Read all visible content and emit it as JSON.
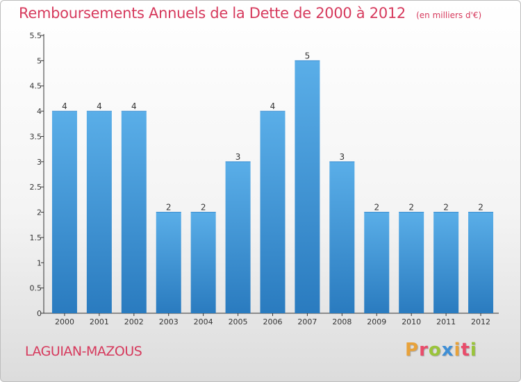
{
  "header": {
    "title": "Remboursements Annuels de la Dette de 2000 à 2012",
    "unit": "(en milliers d'€)"
  },
  "footer": {
    "commune": "LAGUIAN-MAZOUS",
    "brand_letters": [
      "P",
      "r",
      "o",
      "x",
      "i",
      "t",
      "i"
    ],
    "brand_colors": [
      "#e8a23a",
      "#e94c6a",
      "#9ac43a",
      "#3f8fd6",
      "#e8a23a",
      "#e94c6a",
      "#9ac43a"
    ]
  },
  "chart_data": {
    "type": "bar",
    "categories": [
      "2000",
      "2001",
      "2002",
      "2003",
      "2004",
      "2005",
      "2006",
      "2007",
      "2008",
      "2009",
      "2010",
      "2011",
      "2012"
    ],
    "values": [
      4,
      4,
      4,
      2,
      2,
      3,
      4,
      5,
      3,
      2,
      2,
      2,
      2
    ],
    "data_labels": [
      "4",
      "4",
      "4",
      "2",
      "2",
      "3",
      "4",
      "5",
      "3",
      "2",
      "2",
      "2",
      "2"
    ],
    "y_ticks": [
      "0",
      "0.5",
      "1",
      "1.5",
      "2",
      "2.5",
      "3",
      "3.5",
      "4",
      "4.5",
      "5",
      "5.5"
    ],
    "ylim": [
      0,
      5.5
    ],
    "grid": false,
    "colors": {
      "bar_light": "#5aaee8",
      "bar_dark": "#2a7bbf",
      "axis": "#333333",
      "text": "#333333"
    }
  }
}
